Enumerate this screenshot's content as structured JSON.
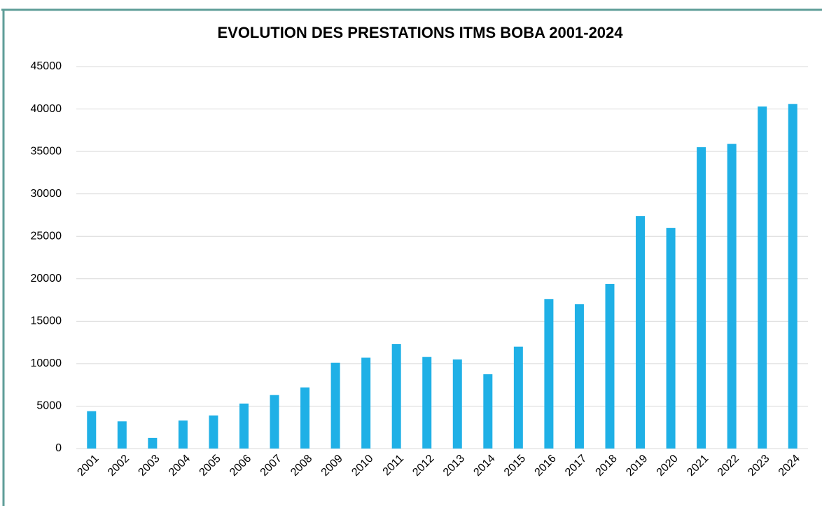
{
  "chart_data": {
    "type": "bar",
    "title": "EVOLUTION DES PRESTATIONS ITMS BOBA 2001-2024",
    "categories": [
      "2001",
      "2002",
      "2003",
      "2004",
      "2005",
      "2006",
      "2007",
      "2008",
      "2009",
      "2010",
      "2011",
      "2012",
      "2013",
      "2014",
      "2015",
      "2016",
      "2017",
      "2018",
      "2019",
      "2020",
      "2021",
      "2022",
      "2023",
      "2024"
    ],
    "values": [
      4400,
      3200,
      1250,
      3300,
      3900,
      5300,
      6300,
      7200,
      10100,
      10700,
      12300,
      10800,
      10500,
      8750,
      12000,
      17600,
      17000,
      19400,
      27400,
      26000,
      35500,
      35900,
      40300,
      40600
    ],
    "color": "#1fb0e6",
    "ylim": [
      0,
      45000
    ],
    "yticks": [
      0,
      5000,
      10000,
      15000,
      20000,
      25000,
      30000,
      35000,
      40000,
      45000
    ],
    "grid": true
  }
}
